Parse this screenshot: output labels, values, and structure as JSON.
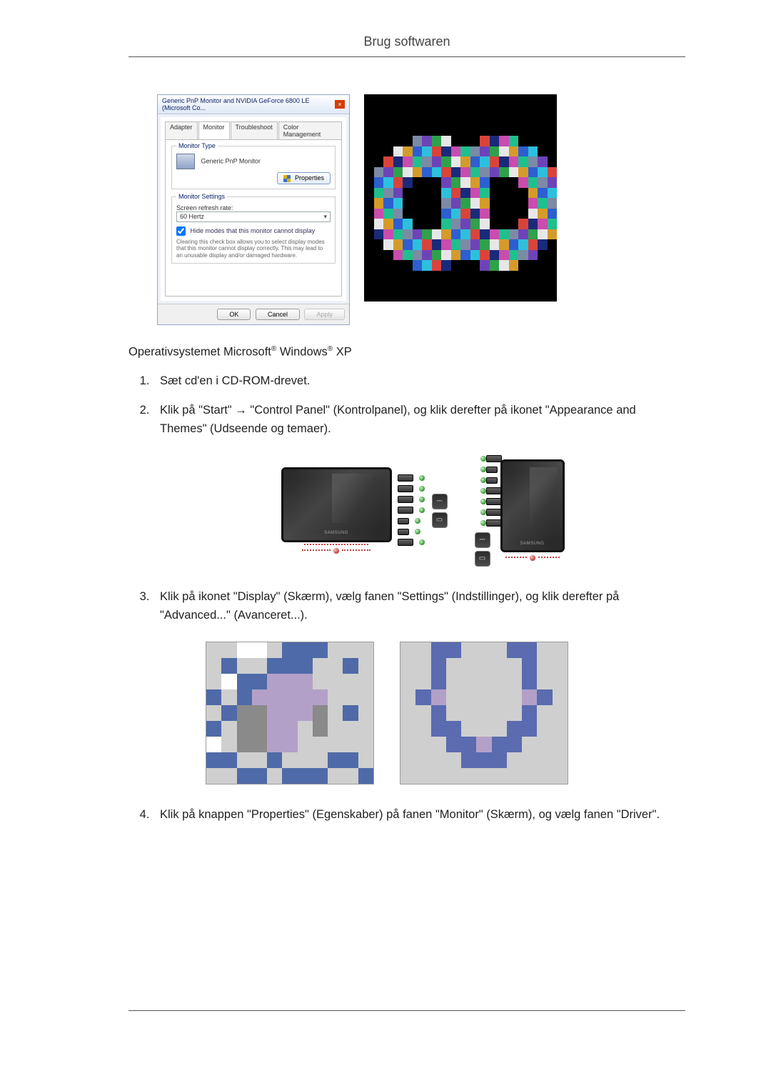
{
  "page_title": "Brug softwaren",
  "dialog": {
    "title": "Generic PnP Monitor and NVIDIA GeForce 6800 LE (Microsoft Co...",
    "tabs": [
      "Adapter",
      "Monitor",
      "Troubleshoot",
      "Color Management"
    ],
    "active_tab_index": 1,
    "monitor_type_label": "Monitor Type",
    "monitor_name": "Generic PnP Monitor",
    "properties_button": "Properties",
    "monitor_settings_label": "Monitor Settings",
    "refresh_label": "Screen refresh rate:",
    "refresh_value": "60 Hertz",
    "hide_modes_label": "Hide modes that this monitor cannot display",
    "hide_modes_note": "Clearing this check box allows you to select display modes that this monitor cannot display correctly. This may lead to an unusable display and/or damaged hardware.",
    "ok": "OK",
    "cancel": "Cancel",
    "apply": "Apply"
  },
  "heading": {
    "pre": "Operativsystemet Microsoft",
    "mid": " Windows",
    "post": " XP"
  },
  "steps": {
    "s1": "Sæt cd'en i CD-ROM-drevet.",
    "s2": "Klik på \"Start\" → \"Control Panel\" (Kontrolpanel), og klik derefter på ikonet \"Appearance and Themes\" (Udseende og temaer).",
    "s3": "Klik på ikonet \"Display\" (Skærm), vælg fanen \"Settings\" (Indstillinger), og klik derefter på \"Advanced...\" (Avanceret...).",
    "s4": "Klik på knappen \"Properties\" (Egenskaber) på fanen \"Monitor\" (Skærm), og vælg fanen \"Driver\"."
  },
  "mosaic": {
    "palette": [
      "#000000",
      "#1a2a7a",
      "#2d5fd1",
      "#2fa14b",
      "#1fbf8e",
      "#d9443a",
      "#d59b2a",
      "#6e43b8",
      "#c94cae",
      "#2cc0dc",
      "#e7e7e7",
      "#7d8aa5"
    ],
    "bg": "#000000"
  },
  "pixel_art": {
    "bg": "#cfcfcf",
    "frame_border": "#9b9b9b",
    "colors": {
      "w": "#ffffff",
      "b": "#4f6aa8",
      "d": "#5a6bb0",
      "g": "#8a8a8a",
      "p": "#b3a0c8",
      "t": "#9ea8c8",
      ".": ""
    },
    "left": [
      ". . w w . b b b . . .",
      ". b . . b b b . . b .",
      ". w b b p p p . . . .",
      "b . b p p p p p . . .",
      ". b g g p p p g . b .",
      "b . g g p p . g . . .",
      "w . g g p p . . . . .",
      "b b . . b . . . b b .",
      ". . b b . b b b . . b"
    ],
    "right": [
      ". . d d . . . d d . .",
      ". . d . . . . . d . .",
      ". . d . . . . . d . .",
      ". d p . . . . . p d .",
      ". . d . . . . . d . .",
      ". . d d . . . d d . .",
      ". . . d d p d d . . .",
      ". . . . d d d . . . .",
      ". . . . . . . . . . ."
    ]
  },
  "tv_panel": {
    "connectors_left": [
      {
        "label": ""
      },
      {
        "label": "HDMI"
      },
      {
        "label": "D-SUB"
      },
      {
        "label": ""
      },
      {
        "label": "",
        "small": true
      },
      {
        "label": "",
        "small": true
      },
      {
        "label": "MENU"
      }
    ],
    "connectors_right": [
      {
        "label": "MENU"
      },
      {
        "label": "",
        "small": true
      },
      {
        "label": "",
        "small": true
      },
      {
        "label": ""
      },
      {
        "label": "HDMI"
      },
      {
        "label": "SOURCE"
      },
      {
        "label": ""
      }
    ],
    "brand": "SAMSUNG"
  },
  "styles": {
    "body_font_size": 16,
    "header_font_size": 18,
    "code_color": "#333",
    "rule_color": "#555"
  }
}
